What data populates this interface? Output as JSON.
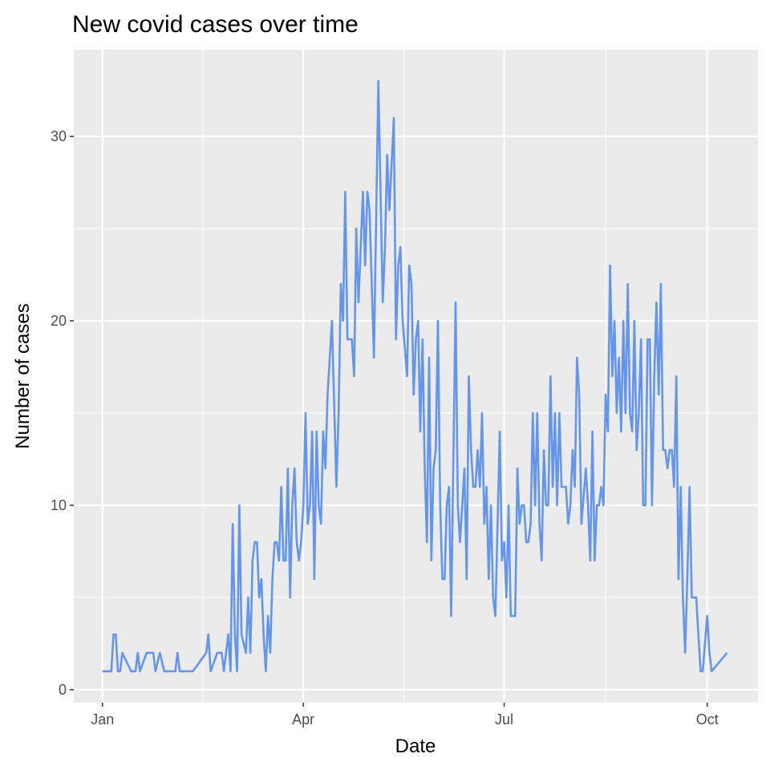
{
  "chart_data": {
    "type": "line",
    "title": "New covid cases over time",
    "xlabel": "Date",
    "ylabel": "Number of cases",
    "x_ticks": [
      {
        "label": "Jan",
        "day": 0
      },
      {
        "label": "Apr",
        "day": 91
      },
      {
        "label": "Jul",
        "day": 182
      },
      {
        "label": "Oct",
        "day": 274
      }
    ],
    "y_ticks": [
      {
        "label": "0",
        "value": 0
      },
      {
        "label": "10",
        "value": 10
      },
      {
        "label": "20",
        "value": 20
      },
      {
        "label": "30",
        "value": 30
      }
    ],
    "xlim": [
      -13,
      297
    ],
    "ylim": [
      -0.7,
      34.7
    ],
    "grid": true,
    "legend": "none",
    "series": [
      {
        "name": "cases",
        "color": "#6495ED",
        "points": [
          [
            0,
            1
          ],
          [
            4,
            1
          ],
          [
            5,
            3
          ],
          [
            6,
            3
          ],
          [
            7,
            1
          ],
          [
            8,
            1
          ],
          [
            9,
            2
          ],
          [
            13,
            1
          ],
          [
            15,
            1
          ],
          [
            16,
            2
          ],
          [
            17,
            1
          ],
          [
            20,
            2
          ],
          [
            23,
            2
          ],
          [
            24,
            1
          ],
          [
            26,
            2
          ],
          [
            28,
            1
          ],
          [
            33,
            1
          ],
          [
            34,
            2
          ],
          [
            35,
            1
          ],
          [
            41,
            1
          ],
          [
            47,
            2
          ],
          [
            48,
            3
          ],
          [
            49,
            1
          ],
          [
            52,
            2
          ],
          [
            54,
            2
          ],
          [
            55,
            1
          ],
          [
            57,
            3
          ],
          [
            58,
            1
          ],
          [
            59,
            9
          ],
          [
            60,
            3
          ],
          [
            61,
            1
          ],
          [
            62,
            10
          ],
          [
            63,
            3
          ],
          [
            65,
            2
          ],
          [
            66,
            5
          ],
          [
            67,
            2
          ],
          [
            68,
            7
          ],
          [
            69,
            8
          ],
          [
            70,
            8
          ],
          [
            71,
            5
          ],
          [
            72,
            6
          ],
          [
            73,
            3
          ],
          [
            74,
            1
          ],
          [
            75,
            4
          ],
          [
            76,
            2
          ],
          [
            77,
            6
          ],
          [
            78,
            8
          ],
          [
            79,
            8
          ],
          [
            80,
            7
          ],
          [
            81,
            11
          ],
          [
            82,
            7
          ],
          [
            83,
            7
          ],
          [
            84,
            12
          ],
          [
            85,
            5
          ],
          [
            86,
            10
          ],
          [
            87,
            12
          ],
          [
            88,
            8
          ],
          [
            89,
            7
          ],
          [
            90,
            8
          ],
          [
            91,
            10
          ],
          [
            92,
            15
          ],
          [
            93,
            9
          ],
          [
            94,
            10
          ],
          [
            95,
            14
          ],
          [
            96,
            6
          ],
          [
            97,
            14
          ],
          [
            98,
            10
          ],
          [
            99,
            9
          ],
          [
            100,
            14
          ],
          [
            101,
            12
          ],
          [
            102,
            16
          ],
          [
            104,
            20
          ],
          [
            106,
            11
          ],
          [
            107,
            15
          ],
          [
            108,
            22
          ],
          [
            109,
            20
          ],
          [
            110,
            27
          ],
          [
            111,
            19
          ],
          [
            113,
            19
          ],
          [
            114,
            17
          ],
          [
            115,
            25
          ],
          [
            116,
            21
          ],
          [
            117,
            24
          ],
          [
            118,
            27
          ],
          [
            119,
            23
          ],
          [
            120,
            27
          ],
          [
            121,
            26
          ],
          [
            123,
            18
          ],
          [
            125,
            33
          ],
          [
            127,
            21
          ],
          [
            128,
            24
          ],
          [
            129,
            29
          ],
          [
            130,
            26
          ],
          [
            132,
            31
          ],
          [
            133,
            19
          ],
          [
            134,
            23
          ],
          [
            135,
            24
          ],
          [
            136,
            20
          ],
          [
            138,
            17
          ],
          [
            139,
            23
          ],
          [
            140,
            22
          ],
          [
            141,
            16
          ],
          [
            142,
            19
          ],
          [
            143,
            20
          ],
          [
            144,
            14
          ],
          [
            145,
            19
          ],
          [
            146,
            12
          ],
          [
            147,
            8
          ],
          [
            148,
            18
          ],
          [
            149,
            7
          ],
          [
            150,
            12
          ],
          [
            151,
            13
          ],
          [
            152,
            20
          ],
          [
            153,
            10
          ],
          [
            154,
            6
          ],
          [
            155,
            6
          ],
          [
            156,
            10
          ],
          [
            157,
            11
          ],
          [
            158,
            4
          ],
          [
            160,
            21
          ],
          [
            161,
            10
          ],
          [
            162,
            8
          ],
          [
            163,
            10
          ],
          [
            164,
            12
          ],
          [
            165,
            6
          ],
          [
            166,
            17
          ],
          [
            167,
            13
          ],
          [
            168,
            11
          ],
          [
            169,
            11
          ],
          [
            170,
            13
          ],
          [
            171,
            11
          ],
          [
            172,
            15
          ],
          [
            173,
            9
          ],
          [
            174,
            11
          ],
          [
            175,
            6
          ],
          [
            176,
            10
          ],
          [
            177,
            5
          ],
          [
            178,
            4
          ],
          [
            180,
            14
          ],
          [
            181,
            7
          ],
          [
            182,
            8
          ],
          [
            183,
            5
          ],
          [
            184,
            10
          ],
          [
            185,
            4
          ],
          [
            187,
            4
          ],
          [
            188,
            12
          ],
          [
            189,
            9
          ],
          [
            190,
            10
          ],
          [
            191,
            10
          ],
          [
            192,
            8
          ],
          [
            193,
            8
          ],
          [
            194,
            9
          ],
          [
            195,
            15
          ],
          [
            196,
            10
          ],
          [
            197,
            15
          ],
          [
            198,
            9
          ],
          [
            199,
            7
          ],
          [
            200,
            13
          ],
          [
            201,
            10
          ],
          [
            202,
            10
          ],
          [
            203,
            17
          ],
          [
            204,
            11
          ],
          [
            205,
            15
          ],
          [
            206,
            10
          ],
          [
            207,
            15
          ],
          [
            208,
            11
          ],
          [
            209,
            11
          ],
          [
            210,
            11
          ],
          [
            211,
            9
          ],
          [
            212,
            10
          ],
          [
            213,
            13
          ],
          [
            214,
            11
          ],
          [
            215,
            18
          ],
          [
            216,
            16
          ],
          [
            217,
            9
          ],
          [
            219,
            12
          ],
          [
            220,
            10
          ],
          [
            221,
            7
          ],
          [
            222,
            14
          ],
          [
            223,
            7
          ],
          [
            224,
            10
          ],
          [
            225,
            10
          ],
          [
            226,
            11
          ],
          [
            227,
            10
          ],
          [
            228,
            16
          ],
          [
            229,
            14
          ],
          [
            230,
            23
          ],
          [
            231,
            17
          ],
          [
            232,
            20
          ],
          [
            233,
            15
          ],
          [
            234,
            18
          ],
          [
            235,
            14
          ],
          [
            236,
            20
          ],
          [
            237,
            15
          ],
          [
            238,
            22
          ],
          [
            239,
            15
          ],
          [
            240,
            14
          ],
          [
            241,
            20
          ],
          [
            242,
            13
          ],
          [
            243,
            15
          ],
          [
            244,
            19
          ],
          [
            245,
            10
          ],
          [
            246,
            10
          ],
          [
            247,
            19
          ],
          [
            248,
            19
          ],
          [
            249,
            10
          ],
          [
            250,
            17
          ],
          [
            251,
            21
          ],
          [
            252,
            16
          ],
          [
            253,
            22
          ],
          [
            254,
            13
          ],
          [
            255,
            13
          ],
          [
            256,
            12
          ],
          [
            257,
            13
          ],
          [
            258,
            13
          ],
          [
            259,
            11
          ],
          [
            260,
            17
          ],
          [
            261,
            6
          ],
          [
            262,
            11
          ],
          [
            263,
            5
          ],
          [
            264,
            2
          ],
          [
            265,
            6
          ],
          [
            266,
            11
          ],
          [
            267,
            5
          ],
          [
            268,
            5
          ],
          [
            269,
            5
          ],
          [
            270,
            3
          ],
          [
            271,
            1
          ],
          [
            272,
            1
          ],
          [
            274,
            4
          ],
          [
            275,
            2
          ],
          [
            276,
            1
          ],
          [
            283,
            2
          ]
        ]
      }
    ]
  }
}
